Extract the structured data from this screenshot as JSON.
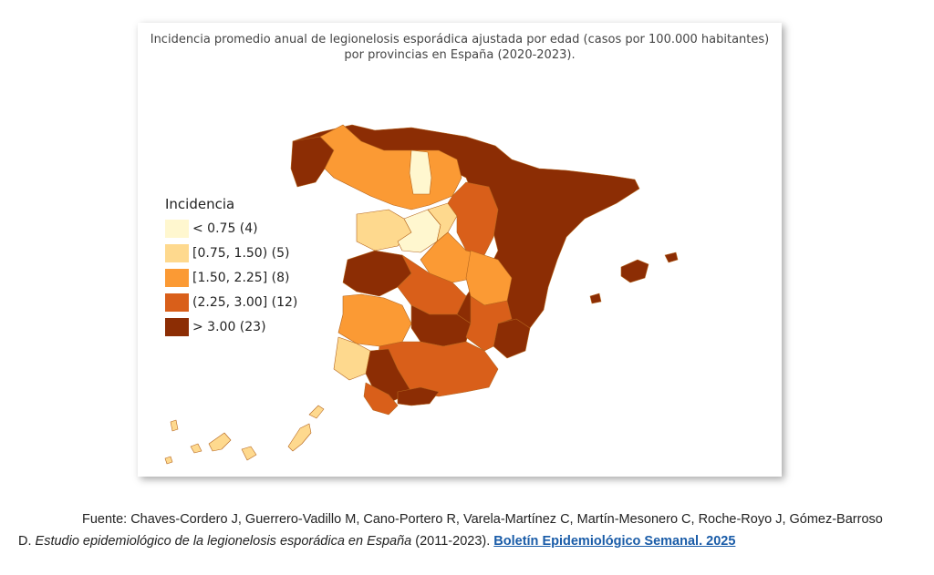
{
  "figure": {
    "title_line1": "Incidencia promedio anual de legionelosis esporádica ajustada por edad (casos por 100.000 habitantes)",
    "title_line2": "por provincias en España (2020-2023)."
  },
  "legend": {
    "title": "Incidencia",
    "items": [
      {
        "label": "< 0.75 (4)",
        "color": "#fff7cf"
      },
      {
        "label": "[0.75, 1.50) (5)",
        "color": "#fed98e"
      },
      {
        "label": "[1.50, 2.25] (8)",
        "color": "#fb9a34"
      },
      {
        "label": "(2.25, 3.00] (12)",
        "color": "#d95f1a"
      },
      {
        "label": "> 3.00 (23)",
        "color": "#8c2d04"
      }
    ]
  },
  "caption": {
    "line1": "Fuente: Chaves-Cordero J, Guerrero-Vadillo M, Cano-Portero R, Varela-Martínez C, Martín-Mesonero C, Roche-Royo J, Gómez-Barroso",
    "line2_prefix": "D. ",
    "line2_italic": "Estudio epidemiológico de la legionelosis esporádica en España",
    "line2_suffix": " (2011-2023). ",
    "link_text": "Boletín Epidemiológico Semanal. 2025"
  }
}
